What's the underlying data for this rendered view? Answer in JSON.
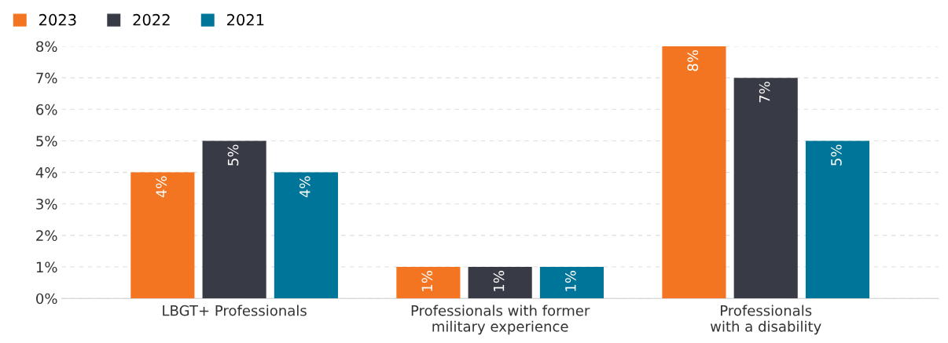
{
  "chart_data": {
    "type": "bar",
    "categories": [
      "LBGT+ Professionals",
      "Professionals with former\nmilitary experience",
      "Professionals\nwith a disability"
    ],
    "series": [
      {
        "name": "2023",
        "color": "#f47521",
        "values": [
          4,
          1,
          8
        ],
        "value_labels": [
          "4%",
          "1%",
          "8%"
        ]
      },
      {
        "name": "2022",
        "color": "#383b46",
        "values": [
          5,
          1,
          7
        ],
        "value_labels": [
          "5%",
          "1%",
          "7%"
        ]
      },
      {
        "name": "2021",
        "color": "#00759a",
        "values": [
          4,
          1,
          5
        ],
        "value_labels": [
          "4%",
          "1%",
          "5%"
        ]
      }
    ],
    "ylim": [
      0,
      8
    ],
    "yticks": [
      {
        "value": 0,
        "label": "0%"
      },
      {
        "value": 1,
        "label": "1%"
      },
      {
        "value": 2,
        "label": "2%"
      },
      {
        "value": 3,
        "label": "3%"
      },
      {
        "value": 4,
        "label": "4%"
      },
      {
        "value": 5,
        "label": "5%"
      },
      {
        "value": 6,
        "label": "6%"
      },
      {
        "value": 7,
        "label": "7%"
      },
      {
        "value": 8,
        "label": "8%"
      }
    ],
    "grid": "y",
    "legend": "top left"
  }
}
